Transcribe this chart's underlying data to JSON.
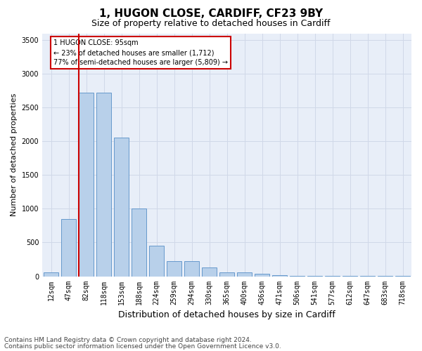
{
  "title1": "1, HUGON CLOSE, CARDIFF, CF23 9BY",
  "title2": "Size of property relative to detached houses in Cardiff",
  "xlabel": "Distribution of detached houses by size in Cardiff",
  "ylabel": "Number of detached properties",
  "categories": [
    "12sqm",
    "47sqm",
    "82sqm",
    "118sqm",
    "153sqm",
    "188sqm",
    "224sqm",
    "259sqm",
    "294sqm",
    "330sqm",
    "365sqm",
    "400sqm",
    "436sqm",
    "471sqm",
    "506sqm",
    "541sqm",
    "577sqm",
    "612sqm",
    "647sqm",
    "683sqm",
    "718sqm"
  ],
  "values": [
    60,
    850,
    2720,
    2720,
    2060,
    1000,
    450,
    220,
    220,
    130,
    60,
    55,
    40,
    15,
    5,
    5,
    5,
    5,
    5,
    5,
    5
  ],
  "bar_color": "#b8d0ea",
  "bar_edge_color": "#6699cc",
  "grid_color": "#d0d8e8",
  "background_color": "#e8eef8",
  "vline_color": "#cc0000",
  "vline_xindex": 1.575,
  "annotation_line1": "1 HUGON CLOSE: 95sqm",
  "annotation_line2": "← 23% of detached houses are smaller (1,712)",
  "annotation_line3": "77% of semi-detached houses are larger (5,809) →",
  "annotation_box_edgecolor": "#cc0000",
  "ylim": [
    0,
    3600
  ],
  "yticks": [
    0,
    500,
    1000,
    1500,
    2000,
    2500,
    3000,
    3500
  ],
  "footer1": "Contains HM Land Registry data © Crown copyright and database right 2024.",
  "footer2": "Contains public sector information licensed under the Open Government Licence v3.0.",
  "title1_fontsize": 11,
  "title2_fontsize": 9,
  "xlabel_fontsize": 9,
  "ylabel_fontsize": 8,
  "tick_fontsize": 7,
  "annotation_fontsize": 7,
  "footer_fontsize": 6.5
}
